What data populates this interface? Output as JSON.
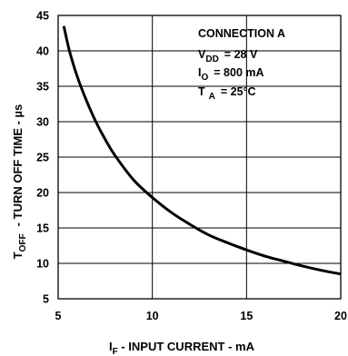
{
  "chart_data": {
    "type": "line",
    "x": [
      5.3,
      5.6,
      6.0,
      6.5,
      7.0,
      7.5,
      8.0,
      9.0,
      10.0,
      11.0,
      12.0,
      13.0,
      14.0,
      15.0,
      16.0,
      17.0,
      18.0,
      19.0,
      20.0
    ],
    "values": [
      43.5,
      40.0,
      36.5,
      33.0,
      30.0,
      27.5,
      25.3,
      21.8,
      19.3,
      17.2,
      15.5,
      14.0,
      12.9,
      11.9,
      11.0,
      10.3,
      9.6,
      9.0,
      8.5
    ],
    "xlim": [
      5,
      20
    ],
    "ylim": [
      5,
      45
    ],
    "x_ticks": [
      "5",
      "10",
      "15",
      "20"
    ],
    "y_ticks": [
      "5",
      "10",
      "15",
      "20",
      "25",
      "30",
      "35",
      "40",
      "45"
    ],
    "xlabel": {
      "main": "I",
      "sub": "F",
      "rest": " - INPUT CURRENT - mA"
    },
    "ylabel": {
      "main": "T",
      "sub": "OFF",
      "rest": "- TURN OFF TIME - µs"
    },
    "grid": true,
    "annotations": [
      {
        "main": "CONNECTION A",
        "sub": "",
        "rest": ""
      },
      {
        "main": "V",
        "sub": "DD",
        "rest": "= 28 V"
      },
      {
        "main": "I",
        "sub": "O",
        "rest": "= 800 mA"
      },
      {
        "main": "T",
        "sub": "A",
        "rest": "= 25°C"
      }
    ]
  }
}
